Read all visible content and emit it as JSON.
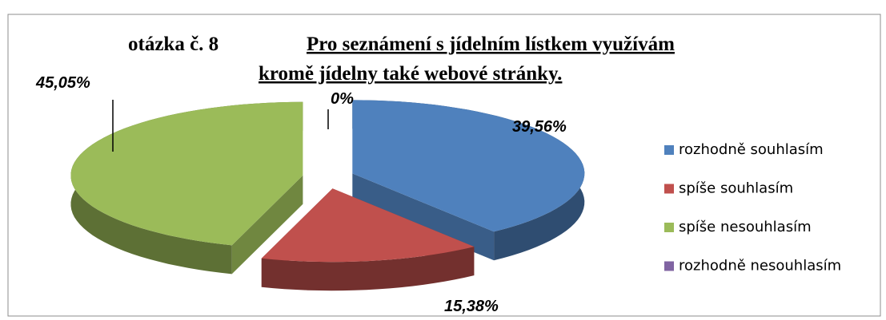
{
  "chart_data": {
    "type": "pie3d",
    "question_label": "otázka č. 8",
    "title_lines": [
      "Pro seznámení s jídelním lístkem využívám",
      "kromě jídelny také webové stránky."
    ],
    "categories": [
      "rozhodně souhlasím",
      "spíše souhlasím",
      "spíše nesouhlasím",
      "rozhodně nesouhlasím"
    ],
    "values": [
      39.56,
      15.38,
      45.05,
      0
    ],
    "value_labels": [
      "39,56%",
      "15,38%",
      "45,05%",
      "0%"
    ],
    "colors": [
      "#4f81bd",
      "#c0504d",
      "#9bbb59",
      "#8064a2"
    ],
    "legend": "right"
  }
}
